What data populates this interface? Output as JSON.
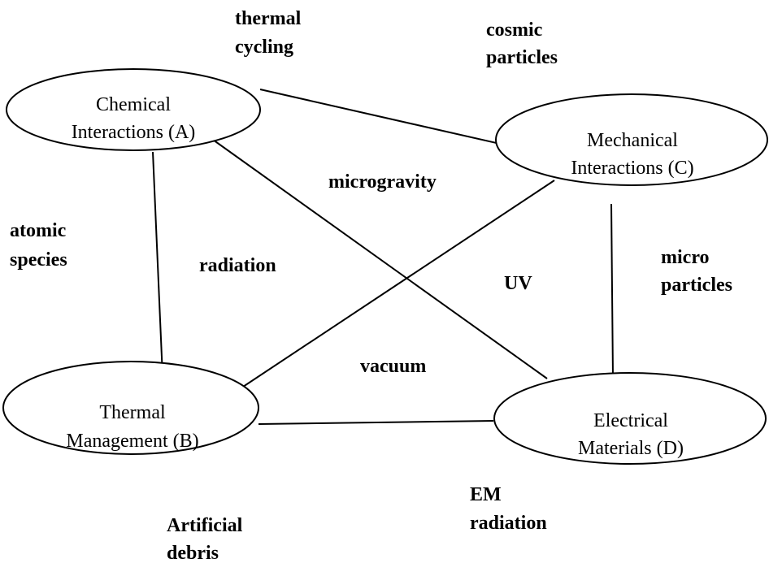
{
  "nodes": [
    {
      "lines": [
        "Chemical",
        "Interactions (A)"
      ]
    },
    {
      "lines": [
        "Thermal",
        "Management (B)"
      ]
    },
    {
      "lines": [
        "Mechanical",
        "Interactions (C)"
      ]
    },
    {
      "lines": [
        "Electrical",
        "Materials (D)"
      ]
    }
  ],
  "factors": [
    {
      "lines": [
        "thermal",
        "cycling"
      ]
    },
    {
      "lines": [
        "cosmic",
        "particles"
      ]
    },
    {
      "lines": [
        "microgravity"
      ]
    },
    {
      "lines": [
        "atomic",
        "species"
      ]
    },
    {
      "lines": [
        "radiation"
      ]
    },
    {
      "lines": [
        "UV"
      ]
    },
    {
      "lines": [
        "micro",
        "particles"
      ]
    },
    {
      "lines": [
        "vacuum"
      ]
    },
    {
      "lines": [
        "EM",
        "radiation"
      ]
    },
    {
      "lines": [
        "Artificial",
        "debris"
      ]
    }
  ]
}
